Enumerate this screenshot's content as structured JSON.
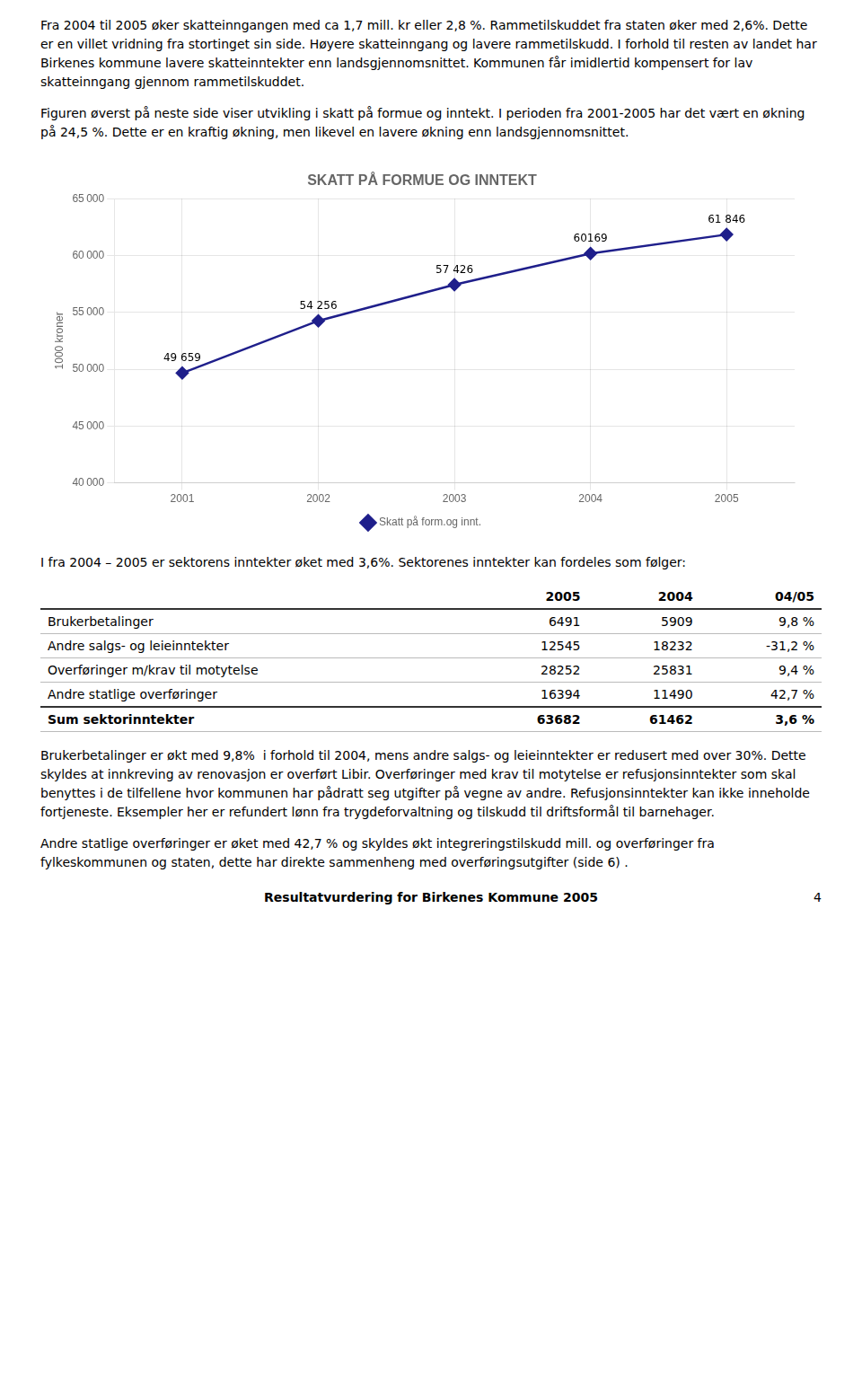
{
  "chart_data": [
    {
      "type": "line",
      "title": "SKATT PÅ FORMUE OG INNTEKT",
      "ylabel": "1000 kroner",
      "categories": [
        2001,
        2002,
        2003,
        2004,
        2005
      ],
      "series": [
        {
          "name": "Skatt på form.og innt.",
          "color": "#1F1F8B",
          "marker": "diamond",
          "line_style": "solid",
          "values": [
            49659,
            54256,
            57426,
            60169,
            61846
          ],
          "value_labels": [
            "49 659",
            "54 256",
            "57 426",
            "60169",
            "61 846"
          ]
        }
      ],
      "ylim": [
        40000,
        65000
      ],
      "yticks": [
        {
          "value": 40000,
          "label": "40 000"
        },
        {
          "value": 45000,
          "label": "45 000"
        },
        {
          "value": 50000,
          "label": "50 000"
        },
        {
          "value": 55000,
          "label": "55 000"
        },
        {
          "value": 60000,
          "label": "60 000"
        },
        {
          "value": 65000,
          "label": "65 000"
        }
      ],
      "grid": true,
      "legend": "bottom",
      "data_labels": true,
      "annotations": {
        "before": [
          "Fra 2004 til 2005 øker skatteinngangen med ca 1,7 mill. kr eller 2,8 %. Rammetilskuddet fra staten øker med 2,6%. Dette er en villet vridning fra stortinget sin side. Høyere skatteinngang og lavere rammetilskudd. I forhold til resten av landet har Birkenes kommune lavere skatteinntekter enn landsgjennomsnittet. Kommunen får imidlertid kompensert for lav skatteinngang gjennom rammetilskuddet.",
          "Figuren øverst på neste side viser utvikling i skatt på formue og inntekt. I perioden fra 2001-2005 har det vært en økning på 24,5 %. Dette er en kraftig økning, men likevel en lavere økning enn landsgjennomsnittet."
        ],
        "after": [
          "I fra 2004 – 2005 er sektorens inntekter øket med 3,6%. Sektorenes inntekter kan fordeles som følger:"
        ]
      }
    },
    {
      "type": "table",
      "categories": [
        "Brukerbetalinger",
        "Andre salgs- og leieinntekter",
        "Overføringer m/krav til motytelse",
        "Andre statlige overføringer",
        "Sum sektorinntekter"
      ],
      "series": [
        {
          "name": "2005",
          "values": [
            6491,
            12545,
            28252,
            16394,
            63682
          ]
        },
        {
          "name": "2004",
          "values": [
            5909,
            18232,
            25831,
            11490,
            61462
          ]
        },
        {
          "name": "04/05",
          "values": [
            9.8,
            -31.2,
            9.4,
            42.7,
            3.6
          ],
          "value_labels": [
            "9,8 %",
            "-31,2 %",
            "9,4 %",
            "42,7 %",
            "3,6 %"
          ]
        }
      ],
      "annotations": {
        "after": [
          "Brukerbetalinger er økt med 9,8%  i forhold til 2004, mens andre salgs- og leieinntekter er redusert med over 30%. Dette skyldes at innkreving av renovasjon er overført Libir. Overføringer med krav til motytelse er refusjonsinntekter som skal benyttes i de tilfellene hvor kommunen har pådratt seg utgifter på vegne av andre. Refusjonsinntekter kan ikke inneholde fortjeneste. Eksempler her er refundert lønn fra trygdeforvaltning og tilskudd til driftsformål til barnehager.",
          "Andre statlige overføringer er øket med 42,7 % og skyldes økt integreringstilskudd mill. og overføringer fra fylkeskommunen og staten, dette har direkte sammenheng med overføringsutgifter (side 6) ."
        ]
      }
    }
  ],
  "footer": {
    "text": "Resultatvurdering for Birkenes Kommune 2005",
    "page_number": "4"
  }
}
